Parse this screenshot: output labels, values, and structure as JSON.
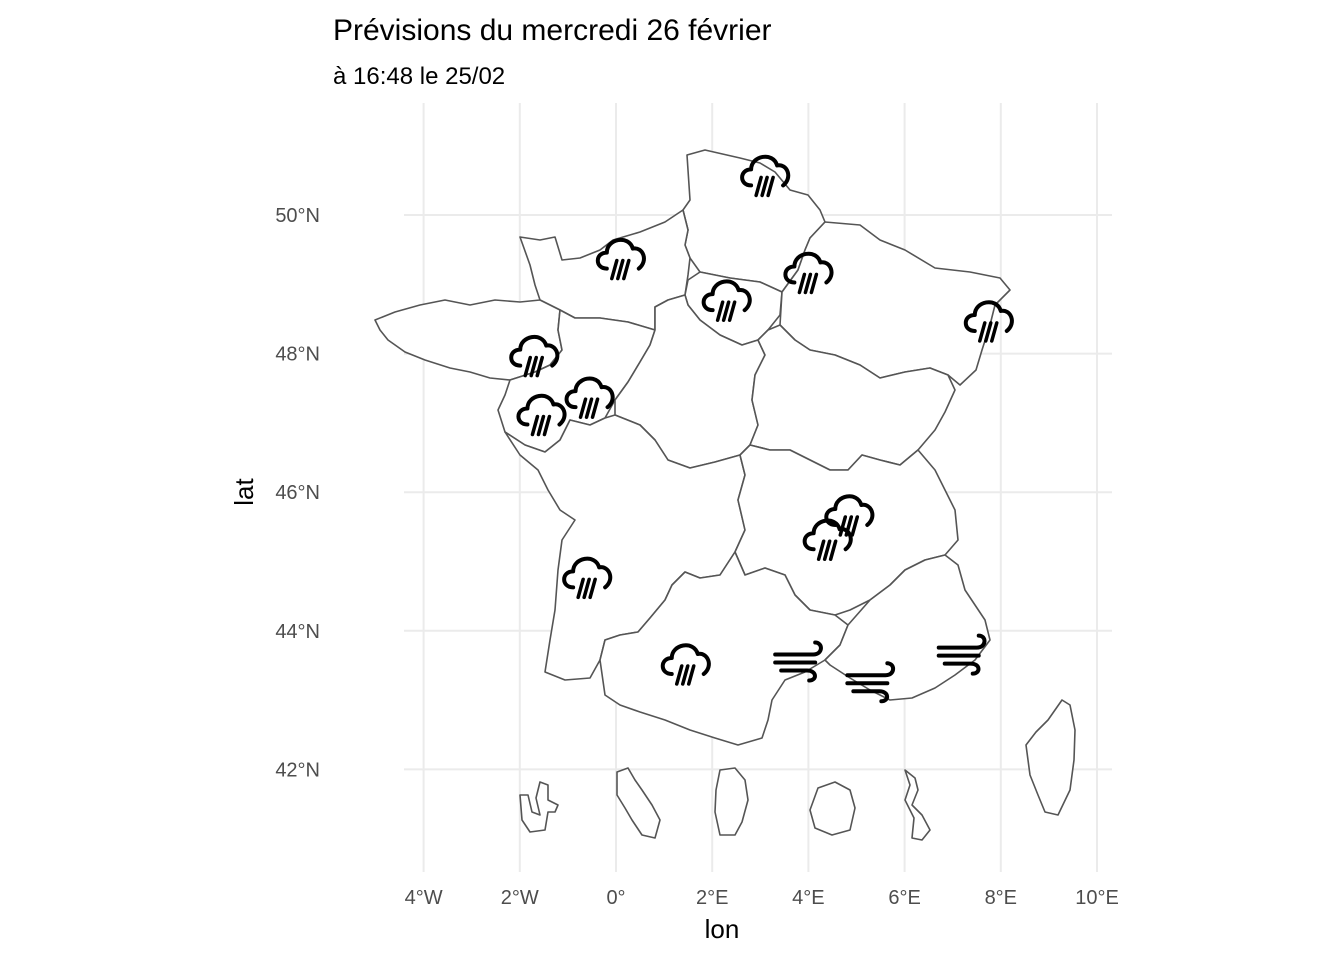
{
  "header": {
    "title": "Prévisions du mercredi 26 février",
    "subtitle": "à 16:48 le 25/02"
  },
  "axes": {
    "xlabel": "lon",
    "ylabel": "lat",
    "x_ticks": [
      {
        "value": -4,
        "label": "4°W"
      },
      {
        "value": -2,
        "label": "2°W"
      },
      {
        "value": 0,
        "label": "0°"
      },
      {
        "value": 2,
        "label": "2°E"
      },
      {
        "value": 4,
        "label": "4°E"
      },
      {
        "value": 6,
        "label": "6°E"
      },
      {
        "value": 8,
        "label": "8°E"
      },
      {
        "value": 10,
        "label": "10°E"
      }
    ],
    "y_ticks": [
      {
        "value": 42,
        "label": "42°N"
      },
      {
        "value": 44,
        "label": "44°N"
      },
      {
        "value": 46,
        "label": "46°N"
      },
      {
        "value": 48,
        "label": "48°N"
      },
      {
        "value": 50,
        "label": "50°N"
      }
    ],
    "xlim": [
      -4.4,
      10.4
    ],
    "ylim": [
      40.5,
      51.2
    ],
    "grid": true
  },
  "forecast_points": [
    {
      "lon": 3.1,
      "lat": 50.6,
      "weather": "rain-icon"
    },
    {
      "lon": 0.1,
      "lat": 49.4,
      "weather": "rain-icon"
    },
    {
      "lon": 4.0,
      "lat": 49.2,
      "weather": "rain-icon"
    },
    {
      "lon": 2.3,
      "lat": 48.8,
      "weather": "rain-icon"
    },
    {
      "lon": 7.75,
      "lat": 48.5,
      "weather": "rain-icon"
    },
    {
      "lon": -1.7,
      "lat": 48.0,
      "weather": "rain-icon"
    },
    {
      "lon": -0.55,
      "lat": 47.4,
      "weather": "rain-icon"
    },
    {
      "lon": -1.55,
      "lat": 47.15,
      "weather": "rain-icon"
    },
    {
      "lon": 4.85,
      "lat": 45.7,
      "weather": "rain-icon"
    },
    {
      "lon": 4.4,
      "lat": 45.35,
      "weather": "rain-icon"
    },
    {
      "lon": -0.6,
      "lat": 44.8,
      "weather": "rain-icon"
    },
    {
      "lon": 1.45,
      "lat": 43.55,
      "weather": "rain-icon"
    },
    {
      "lon": 3.85,
      "lat": 43.6,
      "weather": "wind-icon"
    },
    {
      "lon": 5.35,
      "lat": 43.3,
      "weather": "wind-icon"
    },
    {
      "lon": 7.25,
      "lat": 43.7,
      "weather": "wind-icon"
    }
  ]
}
